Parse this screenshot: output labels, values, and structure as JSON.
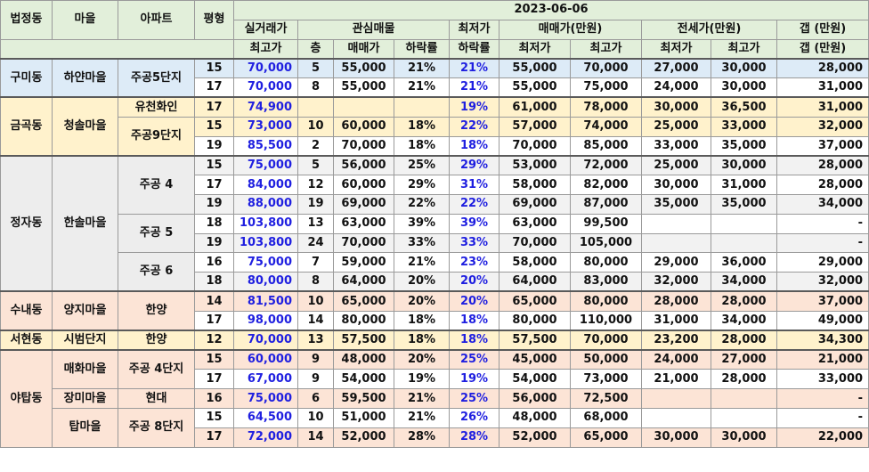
{
  "header": {
    "date": "2023-06-06",
    "col_dong": "법정동",
    "col_village": "마을",
    "col_apt": "아파트",
    "col_pyeong": "평형",
    "col_actual_top": "실거래가",
    "col_actual_bottom": "최고가",
    "col_interest": "관심매물",
    "col_floor": "층",
    "col_sale_price": "매매가",
    "col_drop_rate": "하락률",
    "col_min_top": "최저가",
    "col_min_bottom": "하락률",
    "col_sale_range": "매매가(만원)",
    "col_sale_min": "최저가",
    "col_sale_max": "최고가",
    "col_jeonse_range": "전세가(만원)",
    "col_jeonse_min": "최저가",
    "col_jeonse_max": "최고가",
    "col_gap_top": "갭 (만원)",
    "col_gap_bottom": "갭 (만원)"
  },
  "groups": {
    "gumi": {
      "dong": "구미동",
      "village": "하얀마을",
      "apt": "주공5단지"
    },
    "geumgok": {
      "dong": "금곡동",
      "village": "청솔마을",
      "apt1": "유천화인",
      "apt2": "주공9단지"
    },
    "jeongja": {
      "dong": "정자동",
      "village": "한솔마을",
      "apt1": "주공 4",
      "apt2": "주공 5",
      "apt3": "주공 6"
    },
    "sunae": {
      "dong": "수내동",
      "village": "양지마을",
      "apt": "한양"
    },
    "seohyeon": {
      "dong": "서현동",
      "village": "시범단지",
      "apt": "한양"
    },
    "yatap": {
      "dong": "야탑동",
      "village1": "매화마을",
      "apt1": "주공 4단지",
      "village2": "장미마을",
      "apt2": "현대",
      "village3": "탑마을",
      "apt3": "주공 8단지"
    }
  },
  "rows": [
    {
      "p": "15",
      "actual": "70,000",
      "floor": "5",
      "sale": "55,000",
      "drop": "21%",
      "mindrop": "21%",
      "smin": "55,000",
      "smax": "70,000",
      "jmin": "27,000",
      "jmax": "30,000",
      "gap": "28,000"
    },
    {
      "p": "17",
      "actual": "70,000",
      "floor": "8",
      "sale": "55,000",
      "drop": "21%",
      "mindrop": "21%",
      "smin": "55,000",
      "smax": "75,000",
      "jmin": "24,000",
      "jmax": "30,000",
      "gap": "31,000"
    },
    {
      "p": "17",
      "actual": "74,900",
      "floor": "",
      "sale": "",
      "drop": "",
      "mindrop": "19%",
      "smin": "61,000",
      "smax": "78,000",
      "jmin": "30,000",
      "jmax": "36,500",
      "gap": "31,000"
    },
    {
      "p": "15",
      "actual": "73,000",
      "floor": "10",
      "sale": "60,000",
      "drop": "18%",
      "mindrop": "22%",
      "smin": "57,000",
      "smax": "74,000",
      "jmin": "25,000",
      "jmax": "33,000",
      "gap": "32,000"
    },
    {
      "p": "19",
      "actual": "85,500",
      "floor": "2",
      "sale": "70,000",
      "drop": "18%",
      "mindrop": "18%",
      "smin": "70,000",
      "smax": "85,000",
      "jmin": "33,000",
      "jmax": "35,000",
      "gap": "37,000"
    },
    {
      "p": "15",
      "actual": "75,000",
      "floor": "5",
      "sale": "56,000",
      "drop": "25%",
      "mindrop": "29%",
      "smin": "53,000",
      "smax": "72,000",
      "jmin": "25,000",
      "jmax": "30,000",
      "gap": "28,000"
    },
    {
      "p": "17",
      "actual": "84,000",
      "floor": "12",
      "sale": "60,000",
      "drop": "29%",
      "mindrop": "31%",
      "smin": "58,000",
      "smax": "82,000",
      "jmin": "30,000",
      "jmax": "31,000",
      "gap": "28,000"
    },
    {
      "p": "19",
      "actual": "88,000",
      "floor": "19",
      "sale": "69,000",
      "drop": "22%",
      "mindrop": "22%",
      "smin": "69,000",
      "smax": "87,000",
      "jmin": "35,000",
      "jmax": "35,000",
      "gap": "34,000"
    },
    {
      "p": "18",
      "actual": "103,800",
      "floor": "13",
      "sale": "63,000",
      "drop": "39%",
      "mindrop": "39%",
      "smin": "63,000",
      "smax": "99,500",
      "jmin": "",
      "jmax": "",
      "gap": "-"
    },
    {
      "p": "19",
      "actual": "103,800",
      "floor": "24",
      "sale": "70,000",
      "drop": "33%",
      "mindrop": "33%",
      "smin": "70,000",
      "smax": "105,000",
      "jmin": "",
      "jmax": "",
      "gap": "-"
    },
    {
      "p": "16",
      "actual": "75,000",
      "floor": "7",
      "sale": "59,000",
      "drop": "21%",
      "mindrop": "23%",
      "smin": "58,000",
      "smax": "80,000",
      "jmin": "29,000",
      "jmax": "36,000",
      "gap": "29,000"
    },
    {
      "p": "18",
      "actual": "80,000",
      "floor": "8",
      "sale": "64,000",
      "drop": "20%",
      "mindrop": "20%",
      "smin": "64,000",
      "smax": "83,000",
      "jmin": "32,000",
      "jmax": "34,000",
      "gap": "32,000"
    },
    {
      "p": "14",
      "actual": "81,500",
      "floor": "10",
      "sale": "65,000",
      "drop": "20%",
      "mindrop": "20%",
      "smin": "65,000",
      "smax": "80,000",
      "jmin": "28,000",
      "jmax": "28,000",
      "gap": "37,000"
    },
    {
      "p": "17",
      "actual": "98,000",
      "floor": "14",
      "sale": "80,000",
      "drop": "18%",
      "mindrop": "18%",
      "smin": "80,000",
      "smax": "110,000",
      "jmin": "31,000",
      "jmax": "34,000",
      "gap": "49,000"
    },
    {
      "p": "12",
      "actual": "70,000",
      "floor": "13",
      "sale": "57,500",
      "drop": "18%",
      "mindrop": "18%",
      "smin": "57,500",
      "smax": "70,000",
      "jmin": "23,200",
      "jmax": "28,000",
      "gap": "34,300"
    },
    {
      "p": "15",
      "actual": "60,000",
      "floor": "9",
      "sale": "48,000",
      "drop": "20%",
      "mindrop": "25%",
      "smin": "45,000",
      "smax": "50,000",
      "jmin": "24,000",
      "jmax": "27,000",
      "gap": "21,000"
    },
    {
      "p": "17",
      "actual": "67,000",
      "floor": "9",
      "sale": "54,000",
      "drop": "19%",
      "mindrop": "19%",
      "smin": "54,000",
      "smax": "73,000",
      "jmin": "21,000",
      "jmax": "28,000",
      "gap": "33,000"
    },
    {
      "p": "16",
      "actual": "75,000",
      "floor": "6",
      "sale": "59,500",
      "drop": "21%",
      "mindrop": "25%",
      "smin": "56,000",
      "smax": "72,500",
      "jmin": "",
      "jmax": "",
      "gap": "-"
    },
    {
      "p": "15",
      "actual": "64,500",
      "floor": "10",
      "sale": "51,000",
      "drop": "21%",
      "mindrop": "26%",
      "smin": "48,000",
      "smax": "68,000",
      "jmin": "",
      "jmax": "",
      "gap": "-"
    },
    {
      "p": "17",
      "actual": "72,000",
      "floor": "14",
      "sale": "52,000",
      "drop": "28%",
      "mindrop": "28%",
      "smin": "52,000",
      "smax": "65,000",
      "jmin": "30,000",
      "jmax": "30,000",
      "gap": "22,000"
    }
  ]
}
